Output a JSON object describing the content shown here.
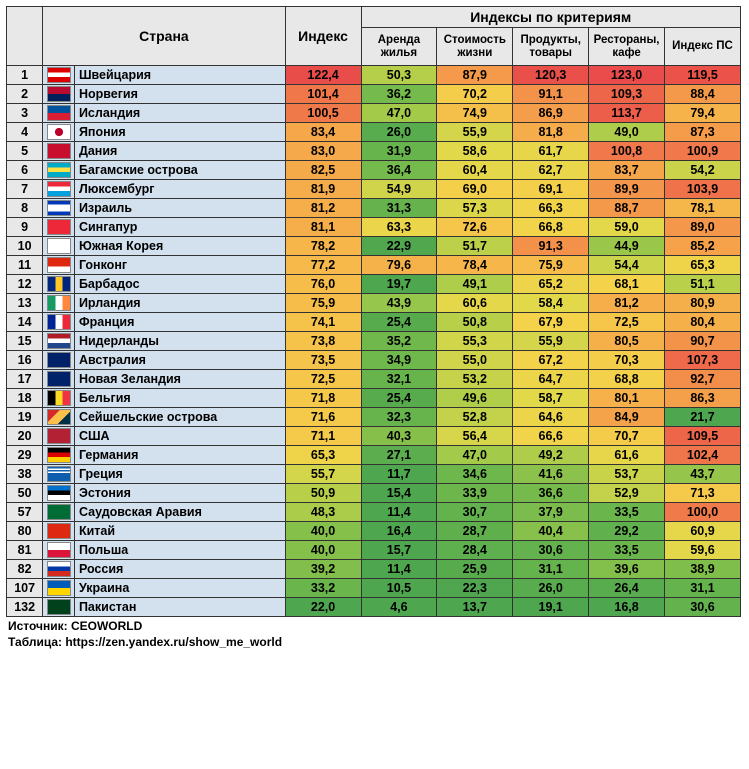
{
  "headers": {
    "country": "Страна",
    "index": "Индекс",
    "criteria": "Индексы по критериям",
    "rent": "Аренда жилья",
    "cost": "Стоимость жизни",
    "groc": "Продукты, товары",
    "rest": "Рестораны, кафе",
    "pp": "Индекс ПС"
  },
  "footer": {
    "source": "Источник: CEOWORLD",
    "table": "Таблица: https://zen.yandex.ru/show_me_world"
  },
  "scale": {
    "stops": [
      [
        22,
        "#4ea64e"
      ],
      [
        35,
        "#6fb84c"
      ],
      [
        48,
        "#a8cc4a"
      ],
      [
        58,
        "#e0d84a"
      ],
      [
        68,
        "#f4d34a"
      ],
      [
        78,
        "#f6b74a"
      ],
      [
        88,
        "#f49a4a"
      ],
      [
        100,
        "#f07a4a"
      ],
      [
        115,
        "#ec5a4a"
      ],
      [
        125,
        "#e8484a"
      ]
    ]
  },
  "rows": [
    {
      "rank": 1,
      "flag": "linear-gradient(to bottom,#d00 33%,#fff 33%,#fff 66%,#d00 66%)",
      "flagbg": "#d00",
      "country": "Швейцария",
      "v": [
        122.4,
        50.3,
        87.9,
        120.3,
        123.0,
        119.5
      ]
    },
    {
      "rank": 2,
      "flag": "linear-gradient(to bottom,#ba0c2f 50%,#00205b 50%)",
      "country": "Норвегия",
      "v": [
        101.4,
        36.2,
        70.2,
        91.1,
        109.3,
        88.4
      ]
    },
    {
      "rank": 3,
      "flag": "linear-gradient(to bottom,#02529c 50%,#dc1e35 50%)",
      "country": "Исландия",
      "v": [
        100.5,
        47.0,
        74.9,
        86.9,
        113.7,
        79.4
      ]
    },
    {
      "rank": 4,
      "flag": "radial-gradient(circle,#bc002d 30%,#fff 32%)",
      "country": "Япония",
      "v": [
        83.4,
        26.0,
        55.9,
        81.8,
        49.0,
        87.3
      ]
    },
    {
      "rank": 5,
      "flag": "linear-gradient(#c8102e,#c8102e)",
      "country": "Дания",
      "v": [
        83.0,
        31.9,
        58.6,
        61.7,
        100.8,
        100.9
      ]
    },
    {
      "rank": 6,
      "flag": "linear-gradient(to bottom,#00abc9 33%,#fae042 33%,#fae042 66%,#00abc9 66%)",
      "country": "Багамские острова",
      "v": [
        82.5,
        36.4,
        60.4,
        62.7,
        83.7,
        54.2
      ]
    },
    {
      "rank": 7,
      "flag": "linear-gradient(to bottom,#ed2939 33%,#fff 33%,#fff 66%,#00a1de 66%)",
      "country": "Люксембург",
      "v": [
        81.9,
        54.9,
        69.0,
        69.1,
        89.9,
        103.9
      ]
    },
    {
      "rank": 8,
      "flag": "linear-gradient(to bottom,#0038b8 25%,#fff 25%,#fff 75%,#0038b8 75%)",
      "country": "Израиль",
      "v": [
        81.2,
        31.3,
        57.3,
        66.3,
        88.7,
        78.1
      ]
    },
    {
      "rank": 9,
      "flag": "linear-gradient(#ed2939,#ed2939)",
      "country": "Сингапур",
      "v": [
        81.1,
        63.3,
        72.6,
        66.8,
        59.0,
        89.0
      ]
    },
    {
      "rank": 10,
      "flag": "linear-gradient(#fff,#fff)",
      "country": "Южная Корея",
      "v": [
        78.2,
        22.9,
        51.7,
        91.3,
        44.9,
        85.2
      ]
    },
    {
      "rank": 11,
      "flag": "linear-gradient(to bottom,#de2910 60%,#fff 60%)",
      "country": "Гонконг",
      "v": [
        77.2,
        79.6,
        78.4,
        75.9,
        54.4,
        65.3
      ]
    },
    {
      "rank": 12,
      "flag": "linear-gradient(to right,#00267f 33%,#ffc726 33%,#ffc726 66%,#00267f 66%)",
      "country": "Барбадос",
      "v": [
        76.0,
        19.7,
        49.1,
        65.2,
        68.1,
        51.1
      ]
    },
    {
      "rank": 13,
      "flag": "linear-gradient(to right,#169b62 33%,#fff 33%,#fff 66%,#ff883e 66%)",
      "country": "Ирландия",
      "v": [
        75.9,
        43.9,
        60.6,
        58.4,
        81.2,
        80.9
      ]
    },
    {
      "rank": 14,
      "flag": "linear-gradient(to right,#002395 33%,#fff 33%,#fff 66%,#ed2939 66%)",
      "country": "Франция",
      "v": [
        74.1,
        25.4,
        50.8,
        67.9,
        72.5,
        80.4
      ]
    },
    {
      "rank": 15,
      "flag": "linear-gradient(to bottom,#ae1c28 33%,#fff 33%,#fff 66%,#21468b 66%)",
      "country": "Нидерланды",
      "v": [
        73.8,
        35.2,
        55.3,
        55.9,
        80.5,
        90.7
      ]
    },
    {
      "rank": 16,
      "flag": "linear-gradient(#012169,#012169)",
      "country": "Австралия",
      "v": [
        73.5,
        34.9,
        55.0,
        67.2,
        70.3,
        107.3
      ]
    },
    {
      "rank": 17,
      "flag": "linear-gradient(#012169,#012169)",
      "country": "Новая Зеландия",
      "v": [
        72.5,
        32.1,
        53.2,
        64.7,
        68.8,
        92.7
      ]
    },
    {
      "rank": 18,
      "flag": "linear-gradient(to right,#000 33%,#fdda24 33%,#fdda24 66%,#ef3340 66%)",
      "country": "Бельгия",
      "v": [
        71.8,
        25.4,
        49.6,
        58.7,
        80.1,
        86.3
      ]
    },
    {
      "rank": 19,
      "flag": "linear-gradient(135deg,#d62828 33%,#fcbf49 33%,#fcbf49 66%,#003049 66%)",
      "country": "Сейшельские острова",
      "v": [
        71.6,
        32.3,
        52.8,
        64.6,
        84.9,
        21.7
      ]
    },
    {
      "rank": 20,
      "flag": "linear-gradient(#b22234,#b22234)",
      "country": "США",
      "v": [
        71.1,
        40.3,
        56.4,
        66.6,
        70.7,
        109.5
      ]
    },
    {
      "rank": 29,
      "flag": "linear-gradient(to bottom,#000 33%,#d00 33%,#d00 66%,#ffce00 66%)",
      "country": "Германия",
      "v": [
        65.3,
        27.1,
        47.0,
        49.2,
        61.6,
        102.4
      ]
    },
    {
      "rank": 38,
      "flag": "linear-gradient(to bottom,#0d5eaf 11%,#fff 11%,#fff 22%,#0d5eaf 22%,#0d5eaf 33%,#fff 33%,#fff 44%,#0d5eaf 44%)",
      "country": "Греция",
      "v": [
        55.7,
        11.7,
        34.6,
        41.6,
        53.7,
        43.7
      ]
    },
    {
      "rank": 50,
      "flag": "linear-gradient(to bottom,#0072ce 33%,#000 33%,#000 66%,#fff 66%)",
      "country": "Эстония",
      "v": [
        50.9,
        15.4,
        33.9,
        36.6,
        52.9,
        71.3
      ]
    },
    {
      "rank": 57,
      "flag": "linear-gradient(#006c35,#006c35)",
      "country": "Саудовская Аравия",
      "v": [
        48.3,
        11.4,
        30.7,
        37.9,
        33.5,
        100.0
      ]
    },
    {
      "rank": 80,
      "flag": "linear-gradient(#de2910,#de2910)",
      "country": "Китай",
      "v": [
        40.0,
        16.4,
        28.7,
        40.4,
        29.2,
        60.9
      ]
    },
    {
      "rank": 81,
      "flag": "linear-gradient(to bottom,#fff 50%,#dc143c 50%)",
      "country": "Польша",
      "v": [
        40.0,
        15.7,
        28.4,
        30.6,
        33.5,
        59.6
      ]
    },
    {
      "rank": 82,
      "flag": "linear-gradient(to bottom,#fff 33%,#0039a6 33%,#0039a6 66%,#d52b1e 66%)",
      "country": "Россия",
      "v": [
        39.2,
        11.4,
        25.9,
        31.1,
        39.6,
        38.9
      ]
    },
    {
      "rank": 107,
      "flag": "linear-gradient(to bottom,#005bbb 50%,#ffd500 50%)",
      "country": "Украина",
      "v": [
        33.2,
        10.5,
        22.3,
        26.0,
        26.4,
        31.1
      ]
    },
    {
      "rank": 132,
      "flag": "linear-gradient(#01411c,#01411c)",
      "country": "Пакистан",
      "v": [
        22.0,
        4.6,
        13.7,
        19.1,
        16.8,
        30.6
      ]
    }
  ]
}
